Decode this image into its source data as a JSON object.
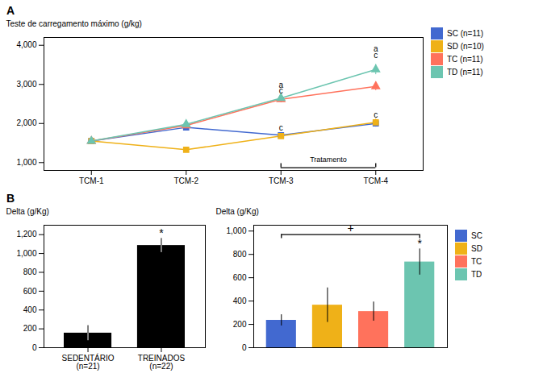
{
  "chart_data": [
    {
      "type": "line",
      "title": "A",
      "ylabel": "Teste de carregamento máximo (g/kg)",
      "categories": [
        "TCM-1",
        "TCM-2",
        "TCM-3",
        "TCM-4"
      ],
      "series": [
        {
          "name": "SC (n=11)",
          "marker": "square",
          "values": [
            1550,
            1900,
            1700,
            2000
          ],
          "errors": [
            50,
            70,
            70,
            90
          ]
        },
        {
          "name": "SD (n=10)",
          "marker": "square",
          "values": [
            1550,
            1330,
            1680,
            2030
          ],
          "errors": [
            50,
            60,
            70,
            90
          ]
        },
        {
          "name": "TC (n=11)",
          "marker": "triangle",
          "values": [
            1550,
            1950,
            2620,
            2950
          ],
          "errors": [
            50,
            70,
            90,
            110
          ]
        },
        {
          "name": "TD (n=11)",
          "marker": "triangle",
          "values": [
            1550,
            1980,
            2650,
            3380
          ],
          "errors": [
            50,
            70,
            90,
            130
          ]
        }
      ],
      "ylim": [
        800,
        4200
      ],
      "yticks": [
        1000,
        2000,
        3000,
        4000
      ],
      "grid": false,
      "legend": "right",
      "annotations": [
        {
          "text": "a",
          "x": "TCM-3",
          "y": 2920
        },
        {
          "text": "c",
          "x": "TCM-3",
          "y": 2760
        },
        {
          "text": "c",
          "x": "TCM-3",
          "y": 1810
        },
        {
          "text": "a",
          "x": "TCM-4",
          "y": 3840
        },
        {
          "text": "c",
          "x": "TCM-4",
          "y": 3680
        },
        {
          "text": "c",
          "x": "TCM-4",
          "y": 2160
        }
      ],
      "brackets": [
        {
          "text": "Tratamento",
          "from": "TCM-3",
          "to": "TCM-4",
          "y": 870
        }
      ]
    },
    {
      "type": "bar",
      "title": "B",
      "ylabel": "Delta (g/Kg)",
      "categories": [
        "SEDENTÁRIO\n(n=21)",
        "TREINADOS\n(n=22)"
      ],
      "values": [
        155,
        1085
      ],
      "errors": [
        80,
        75
      ],
      "ylim": [
        0,
        1300
      ],
      "yticks": [
        0,
        200,
        400,
        600,
        800,
        1000,
        1200
      ],
      "grid": false,
      "annotations": [
        {
          "text": "*",
          "x": "TREINADOS\n(n=22)"
        }
      ]
    },
    {
      "type": "bar",
      "ylabel": "Delta (g/Kg)",
      "categories": [
        "SC",
        "SD",
        "TC",
        "TD"
      ],
      "values": [
        235,
        365,
        310,
        735
      ],
      "errors": [
        48,
        148,
        82,
        112
      ],
      "ylim": [
        0,
        1050
      ],
      "yticks": [
        0,
        200,
        400,
        600,
        800,
        1000
      ],
      "grid": false,
      "legend": "right",
      "tick_labels": "y",
      "annotations": [
        {
          "text": "*",
          "x": "TD"
        }
      ],
      "brackets": [
        {
          "text": "+",
          "from": "SC",
          "to": "TD",
          "y": 970
        }
      ]
    }
  ]
}
